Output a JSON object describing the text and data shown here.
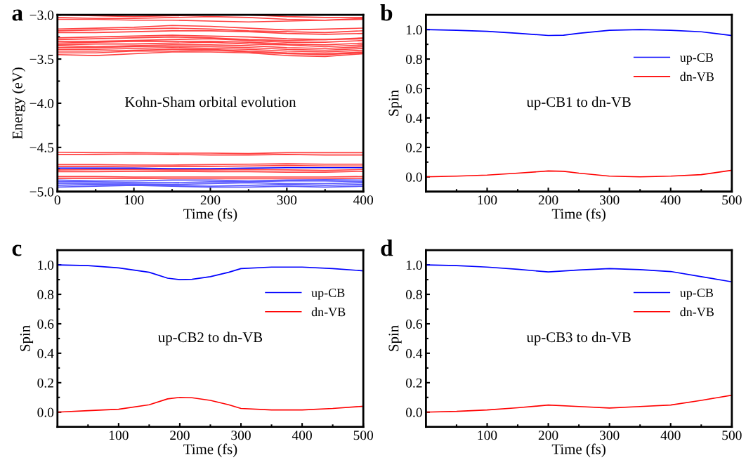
{
  "chart_data": [
    {
      "type": "line",
      "title": "a",
      "xlabel": "Time (fs)",
      "ylabel": "Energy (eV)",
      "annotations": [
        "Kohn-Sham orbital evolution"
      ],
      "xlim": [
        0,
        400
      ],
      "xticks": [
        0,
        {
          "value": 50,
          "label": null
        },
        100,
        {
          "value": 150,
          "label": null
        },
        200,
        {
          "value": 250,
          "label": null
        },
        300,
        {
          "value": 350,
          "label": null
        },
        400
      ],
      "ylim": [
        -5.0,
        -3.0
      ],
      "yticks": [
        {
          "value": -5.0,
          "label": "−5.0"
        },
        {
          "value": -4.75,
          "label": null
        },
        {
          "value": -4.5,
          "label": "−4.5"
        },
        {
          "value": -4.25,
          "label": null
        },
        {
          "value": -4.0,
          "label": "−4.0"
        },
        {
          "value": -3.75,
          "label": null
        },
        {
          "value": -3.5,
          "label": "−3.5"
        },
        {
          "value": -3.25,
          "label": null
        },
        {
          "value": -3.0,
          "label": "−3.0"
        }
      ],
      "x": [
        0,
        50,
        100,
        150,
        200,
        250,
        300,
        350,
        400
      ],
      "series": [
        {
          "color": "#ff4040",
          "values": [
            -3.0,
            -3.01,
            -3.02,
            -3.01,
            -3.0,
            -3.0,
            -3.02,
            -3.03,
            -3.03
          ]
        },
        {
          "color": "#ff4040",
          "values": [
            -3.03,
            -3.04,
            -3.04,
            -3.03,
            -3.02,
            -3.03,
            -3.05,
            -3.06,
            -3.05
          ]
        },
        {
          "color": "#ff4040",
          "values": [
            -3.05,
            -3.05,
            -3.06,
            -3.06,
            -3.07,
            -3.08,
            -3.07,
            -3.06,
            -3.04
          ]
        },
        {
          "color": "#ff4040",
          "values": [
            -3.16,
            -3.15,
            -3.14,
            -3.12,
            -3.13,
            -3.15,
            -3.17,
            -3.16,
            -3.15
          ]
        },
        {
          "color": "#ff4040",
          "values": [
            -3.18,
            -3.17,
            -3.16,
            -3.15,
            -3.16,
            -3.18,
            -3.19,
            -3.2,
            -3.18
          ]
        },
        {
          "color": "#ff4040",
          "values": [
            -3.2,
            -3.2,
            -3.19,
            -3.18,
            -3.18,
            -3.19,
            -3.21,
            -3.22,
            -3.21
          ]
        },
        {
          "color": "#ff4040",
          "values": [
            -3.26,
            -3.25,
            -3.24,
            -3.23,
            -3.24,
            -3.25,
            -3.27,
            -3.28,
            -3.26
          ]
        },
        {
          "color": "#ff4040",
          "values": [
            -3.28,
            -3.27,
            -3.26,
            -3.25,
            -3.26,
            -3.28,
            -3.29,
            -3.28,
            -3.27
          ]
        },
        {
          "color": "#ff4040",
          "values": [
            -3.3,
            -3.3,
            -3.29,
            -3.28,
            -3.27,
            -3.29,
            -3.31,
            -3.31,
            -3.29
          ]
        },
        {
          "color": "#ff4040",
          "values": [
            -3.32,
            -3.31,
            -3.3,
            -3.3,
            -3.3,
            -3.31,
            -3.33,
            -3.34,
            -3.32
          ]
        },
        {
          "color": "#ff4040",
          "values": [
            -3.34,
            -3.33,
            -3.33,
            -3.32,
            -3.31,
            -3.33,
            -3.34,
            -3.36,
            -3.34
          ]
        },
        {
          "color": "#ff4040",
          "values": [
            -3.35,
            -3.36,
            -3.35,
            -3.34,
            -3.34,
            -3.35,
            -3.37,
            -3.38,
            -3.36
          ]
        },
        {
          "color": "#ff4040",
          "values": [
            -3.37,
            -3.37,
            -3.36,
            -3.36,
            -3.36,
            -3.37,
            -3.39,
            -3.4,
            -3.38
          ]
        },
        {
          "color": "#ff4040",
          "values": [
            -3.39,
            -3.39,
            -3.38,
            -3.37,
            -3.38,
            -3.39,
            -3.41,
            -3.42,
            -3.4
          ]
        },
        {
          "color": "#ff4040",
          "values": [
            -3.41,
            -3.41,
            -3.4,
            -3.39,
            -3.39,
            -3.41,
            -3.43,
            -3.44,
            -3.42
          ]
        },
        {
          "color": "#ff4040",
          "values": [
            -3.43,
            -3.43,
            -3.41,
            -3.41,
            -3.4,
            -3.42,
            -3.44,
            -3.45,
            -3.43
          ]
        },
        {
          "color": "#ff4040",
          "values": [
            -3.45,
            -3.46,
            -3.44,
            -3.42,
            -3.42,
            -3.43,
            -3.46,
            -3.47,
            -3.44
          ]
        },
        {
          "color": "#ff4040",
          "values": [
            -4.555,
            -4.56,
            -4.56,
            -4.565,
            -4.565,
            -4.57,
            -4.56,
            -4.56,
            -4.56
          ]
        },
        {
          "color": "#ff4040",
          "values": [
            -4.58,
            -4.58,
            -4.575,
            -4.58,
            -4.585,
            -4.585,
            -4.58,
            -4.585,
            -4.585
          ]
        },
        {
          "color": "#ff4040",
          "values": [
            -4.695,
            -4.695,
            -4.7,
            -4.7,
            -4.695,
            -4.69,
            -4.685,
            -4.69,
            -4.69
          ]
        },
        {
          "color": "#ff4040",
          "values": [
            -4.715,
            -4.715,
            -4.72,
            -4.715,
            -4.715,
            -4.71,
            -4.705,
            -4.71,
            -4.71
          ]
        },
        {
          "color": "#ff4040",
          "values": [
            -4.755,
            -4.75,
            -4.75,
            -4.755,
            -4.755,
            -4.75,
            -4.755,
            -4.76,
            -4.75
          ]
        },
        {
          "color": "#ff4040",
          "values": [
            -4.775,
            -4.775,
            -4.77,
            -4.77,
            -4.775,
            -4.775,
            -4.78,
            -4.78,
            -4.77
          ]
        },
        {
          "color": "#ff4040",
          "values": [
            -4.83,
            -4.83,
            -4.835,
            -4.835,
            -4.835,
            -4.835,
            -4.835,
            -4.835,
            -4.83
          ]
        },
        {
          "color": "#ff4040",
          "values": [
            -4.85,
            -4.85,
            -4.85,
            -4.855,
            -4.855,
            -4.855,
            -4.855,
            -4.855,
            -4.85
          ]
        },
        {
          "color": "#0000ff",
          "values": [
            -4.735,
            -4.735,
            -4.735,
            -4.74,
            -4.74,
            -4.735,
            -4.73,
            -4.73,
            -4.73
          ]
        },
        {
          "color": "#5a5aff",
          "values": [
            -4.87,
            -4.88,
            -4.88,
            -4.87,
            -4.87,
            -4.88,
            -4.87,
            -4.865,
            -4.87
          ]
        },
        {
          "color": "#5a5aff",
          "values": [
            -4.89,
            -4.89,
            -4.9,
            -4.9,
            -4.89,
            -4.89,
            -4.88,
            -4.88,
            -4.89
          ]
        },
        {
          "color": "#5a5aff",
          "values": [
            -4.91,
            -4.91,
            -4.915,
            -4.92,
            -4.91,
            -4.9,
            -4.91,
            -4.91,
            -4.9
          ]
        },
        {
          "color": "#5a5aff",
          "values": [
            -4.93,
            -4.92,
            -4.925,
            -4.93,
            -4.94,
            -4.93,
            -4.92,
            -4.93,
            -4.92
          ]
        },
        {
          "color": "#5a5aff",
          "values": [
            -4.95,
            -4.94,
            -4.93,
            -4.94,
            -4.95,
            -4.95,
            -4.94,
            -4.95,
            -4.94
          ]
        }
      ]
    },
    {
      "type": "line",
      "title": "b",
      "xlabel": "Time (fs)",
      "ylabel": "Spin",
      "annotations": [
        "up-CB1 to dn-VB"
      ],
      "legend": "top right",
      "xlim": [
        0,
        500
      ],
      "xticks": [
        {
          "value": 50,
          "label": null
        },
        100,
        {
          "value": 150,
          "label": null
        },
        200,
        {
          "value": 250,
          "label": null
        },
        300,
        {
          "value": 350,
          "label": null
        },
        400,
        {
          "value": 450,
          "label": null
        },
        500
      ],
      "ylim": [
        -0.1,
        1.1
      ],
      "yticks": [
        {
          "value": 0,
          "label": "0.0"
        },
        {
          "value": 0.1,
          "label": null
        },
        0.2,
        {
          "value": 0.3,
          "label": null
        },
        0.4,
        {
          "value": 0.5,
          "label": null
        },
        0.6,
        {
          "value": 0.7,
          "label": null
        },
        0.8,
        {
          "value": 0.9,
          "label": null
        },
        {
          "value": 1,
          "label": "1.0"
        }
      ],
      "x": [
        0,
        50,
        100,
        150,
        200,
        225,
        250,
        300,
        350,
        400,
        450,
        500
      ],
      "series": [
        {
          "name": "up-CB",
          "color": "#0000ff",
          "values": [
            1.0,
            0.995,
            0.988,
            0.975,
            0.96,
            0.962,
            0.975,
            0.995,
            1.0,
            0.995,
            0.985,
            0.96
          ]
        },
        {
          "name": "dn-VB",
          "color": "#ff0000",
          "values": [
            0.0,
            0.005,
            0.012,
            0.025,
            0.04,
            0.038,
            0.025,
            0.005,
            0.0,
            0.005,
            0.015,
            0.045
          ]
        }
      ]
    },
    {
      "type": "line",
      "title": "c",
      "xlabel": "Time (fs)",
      "ylabel": "Spin",
      "annotations": [
        "up-CB2 to dn-VB"
      ],
      "legend": "top right",
      "xlim": [
        0,
        500
      ],
      "xticks": [
        {
          "value": 50,
          "label": null
        },
        100,
        {
          "value": 150,
          "label": null
        },
        200,
        {
          "value": 250,
          "label": null
        },
        300,
        {
          "value": 350,
          "label": null
        },
        400,
        {
          "value": 450,
          "label": null
        },
        500
      ],
      "ylim": [
        -0.1,
        1.1
      ],
      "yticks": [
        {
          "value": 0,
          "label": "0.0"
        },
        {
          "value": 0.1,
          "label": null
        },
        0.2,
        {
          "value": 0.3,
          "label": null
        },
        0.4,
        {
          "value": 0.5,
          "label": null
        },
        0.6,
        {
          "value": 0.7,
          "label": null
        },
        0.8,
        {
          "value": 0.9,
          "label": null
        },
        {
          "value": 1,
          "label": "1.0"
        }
      ],
      "x": [
        0,
        50,
        100,
        150,
        180,
        200,
        220,
        250,
        280,
        300,
        350,
        400,
        450,
        500
      ],
      "series": [
        {
          "name": "up-CB",
          "color": "#0000ff",
          "values": [
            1.0,
            0.995,
            0.98,
            0.95,
            0.91,
            0.9,
            0.902,
            0.92,
            0.95,
            0.975,
            0.985,
            0.985,
            0.975,
            0.96
          ]
        },
        {
          "name": "dn-VB",
          "color": "#ff0000",
          "values": [
            0.0,
            0.01,
            0.02,
            0.05,
            0.09,
            0.1,
            0.098,
            0.08,
            0.05,
            0.025,
            0.015,
            0.015,
            0.025,
            0.04
          ]
        }
      ]
    },
    {
      "type": "line",
      "title": "d",
      "xlabel": "Time (fs)",
      "ylabel": "Spin",
      "annotations": [
        "up-CB3 to dn-VB"
      ],
      "legend": "top right",
      "xlim": [
        0,
        500
      ],
      "xticks": [
        {
          "value": 50,
          "label": null
        },
        100,
        {
          "value": 150,
          "label": null
        },
        200,
        {
          "value": 250,
          "label": null
        },
        300,
        {
          "value": 350,
          "label": null
        },
        400,
        {
          "value": 450,
          "label": null
        },
        500
      ],
      "ylim": [
        -0.1,
        1.1
      ],
      "yticks": [
        {
          "value": 0,
          "label": "0.0"
        },
        {
          "value": 0.1,
          "label": null
        },
        0.2,
        {
          "value": 0.3,
          "label": null
        },
        0.4,
        {
          "value": 0.5,
          "label": null
        },
        0.6,
        {
          "value": 0.7,
          "label": null
        },
        0.8,
        {
          "value": 0.9,
          "label": null
        },
        {
          "value": 1,
          "label": "1.0"
        }
      ],
      "x": [
        0,
        50,
        100,
        150,
        200,
        250,
        300,
        350,
        400,
        450,
        500
      ],
      "series": [
        {
          "name": "up-CB",
          "color": "#0000ff",
          "values": [
            1.0,
            0.995,
            0.985,
            0.97,
            0.952,
            0.965,
            0.975,
            0.968,
            0.955,
            0.92,
            0.885
          ]
        },
        {
          "name": "dn-VB",
          "color": "#ff0000",
          "values": [
            0.0,
            0.005,
            0.015,
            0.03,
            0.048,
            0.038,
            0.028,
            0.038,
            0.048,
            0.08,
            0.115
          ]
        }
      ]
    }
  ]
}
